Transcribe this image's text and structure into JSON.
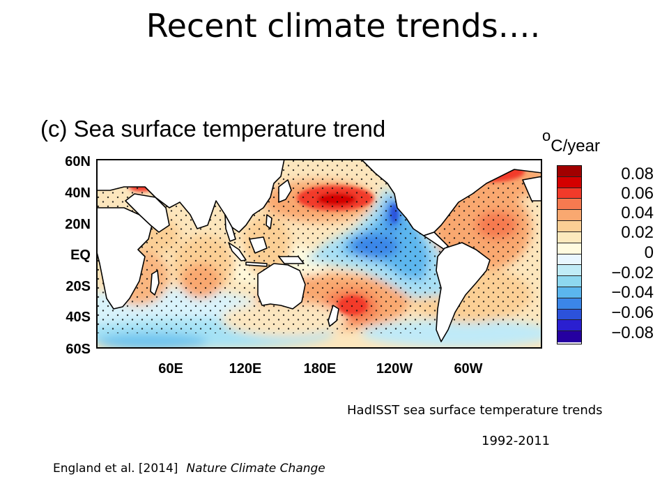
{
  "slide": {
    "title": "Recent climate trends…."
  },
  "figure": {
    "panel_label": "(c) Sea surface temperature trend",
    "lat_labels": [
      "60N",
      "40N",
      "20N",
      "EQ",
      "20S",
      "40S",
      "60S"
    ],
    "lon_labels": [
      "60E",
      "120E",
      "180E",
      "120W",
      "60W"
    ],
    "units_superscript": "o",
    "units_text": "C/year",
    "colorbar": {
      "labels": [
        "0.08",
        "0.06",
        "0.04",
        "0.02",
        "0",
        "−0.02",
        "−0.04",
        "−0.06",
        "−0.08"
      ],
      "colors": [
        "#a10000",
        "#d40000",
        "#f23a2a",
        "#f67a50",
        "#f9a870",
        "#fbcf95",
        "#fce9bd",
        "#fffbdf",
        "#e9f7ff",
        "#c1ecf7",
        "#8ed8f0",
        "#5bb6ee",
        "#3b86e8",
        "#2c52db",
        "#2a1fd0",
        "#2500a0"
      ]
    }
  },
  "caption": {
    "line1": "HadISST sea surface temperature trends",
    "line2": "1992-2011"
  },
  "citation": {
    "authors": "England et al. [2014]",
    "journal": "Nature Climate Change"
  }
}
